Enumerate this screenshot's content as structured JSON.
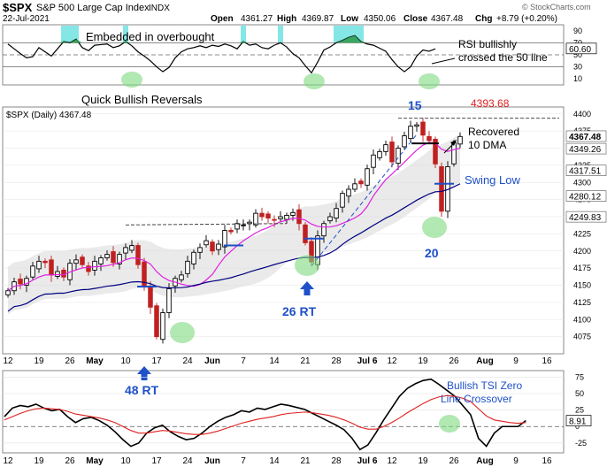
{
  "header": {
    "symbol": "$SPX",
    "name": "S&P 500 Large Cap Index",
    "exchange": "INDX",
    "date": "22-Jul-2021",
    "open_label": "Open",
    "open": "4361.27",
    "high_label": "High",
    "high": "4369.87",
    "low_label": "Low",
    "low": "4350.06",
    "close_label": "Close",
    "close": "4367.48",
    "chg_label": "Chg",
    "chg": "+8.79 (+0.20%)",
    "watermark": "© StockCharts.com"
  },
  "chart_data": [
    {
      "type": "line",
      "panel": "rsi",
      "ylim": [
        0,
        100
      ],
      "yticks": [
        10,
        30,
        50,
        70,
        90
      ],
      "levels": [
        30,
        50,
        70
      ],
      "overbought_fill": "#66e0e0",
      "last_value": "60.60",
      "series": [
        {
          "values": [
            68,
            60,
            52,
            45,
            47,
            62,
            55,
            48,
            60,
            72,
            70,
            76,
            62,
            57,
            66,
            67,
            68,
            62,
            65,
            72,
            65,
            55,
            48,
            40,
            30,
            22,
            29,
            45,
            55,
            60,
            62,
            65,
            62,
            66,
            64,
            68,
            65,
            60,
            72,
            66,
            68,
            62,
            60,
            66,
            70,
            63,
            52,
            45,
            32,
            20,
            38,
            58,
            63,
            70,
            74,
            79,
            82,
            72,
            68,
            66,
            61,
            56,
            42,
            30,
            22,
            30,
            48,
            58,
            56,
            60
          ]
        }
      ],
      "annotations": [
        "Embedded in overbought",
        "RSI bullishly\ncrossed the 50 line",
        "Quick Bullish Reversals"
      ]
    },
    {
      "type": "candlestick",
      "panel": "price",
      "title": "$SPX (Daily) 4367.48",
      "ylim": [
        4050,
        4410
      ],
      "yticks": [
        4075,
        4100,
        4125,
        4150,
        4175,
        4200,
        4225,
        4250,
        4275,
        4300,
        4325,
        4350,
        4375,
        4400
      ],
      "right_labels": [
        "4367.48",
        "4349.26",
        "4317.51",
        "4280.12",
        "4249.83"
      ],
      "x_ticks": [
        "12",
        "19",
        "26",
        "May",
        "10",
        "17",
        "24",
        "Jun",
        "7",
        "14",
        "21",
        "28",
        "Jul 6",
        "12",
        "19",
        "26",
        "Aug",
        "9",
        "16"
      ],
      "x_tick_index": [
        0,
        5,
        10,
        14,
        19,
        24,
        29,
        33,
        38,
        43,
        48,
        53,
        58,
        62,
        67,
        72,
        77,
        82,
        87
      ],
      "close": [
        4142,
        4155,
        4152,
        4160,
        4178,
        4185,
        4183,
        4165,
        4170,
        4162,
        4182,
        4187,
        4180,
        4170,
        4185,
        4190,
        4195,
        4183,
        4195,
        4205,
        4208,
        4180,
        4150,
        4118,
        4075,
        4110,
        4145,
        4160,
        4165,
        4185,
        4198,
        4205,
        4215,
        4200,
        4210,
        4230,
        4228,
        4240,
        4238,
        4242,
        4255,
        4250,
        4248,
        4245,
        4250,
        4252,
        4256,
        4240,
        4212,
        4184,
        4222,
        4240,
        4250,
        4262,
        4284,
        4290,
        4298,
        4298,
        4320,
        4340,
        4345,
        4355,
        4330,
        4350,
        4368,
        4382,
        4384,
        4369,
        4361,
        4327,
        4258,
        4323,
        4358,
        4367
      ],
      "ma_short": {
        "name": "10 DMA",
        "color": "#e020e0",
        "last": "4349.26"
      },
      "ma_long": {
        "name": "50 DMA",
        "color": "#000080",
        "last": "4249.83"
      },
      "resistance_level": "4393.68",
      "annotations": [
        "Recovered\n10 DMA",
        "Swing Low",
        "15",
        "20",
        "26 RT",
        "48 RT"
      ]
    },
    {
      "type": "line",
      "panel": "tsi",
      "ylim": [
        -40,
        85
      ],
      "yticks": [
        -25,
        0,
        25,
        50,
        75
      ],
      "last_value": "8.91",
      "series": [
        {
          "name": "TSI",
          "color": "#000000",
          "values": [
            15,
            28,
            32,
            30,
            34,
            28,
            24,
            26,
            15,
            6,
            12,
            14,
            9,
            2,
            -8,
            -20,
            -30,
            -25,
            -10,
            -2,
            2,
            -8,
            -15,
            -20,
            -18,
            -10,
            0,
            8,
            14,
            18,
            24,
            22,
            28,
            26,
            30,
            34,
            32,
            29,
            26,
            20,
            14,
            8,
            2,
            -5,
            -18,
            -35,
            -28,
            -10,
            10,
            28,
            46,
            58,
            65,
            70,
            72,
            64,
            55,
            46,
            32,
            18,
            -18,
            -30,
            -10,
            0,
            0,
            0,
            9
          ]
        },
        {
          "name": "Signal",
          "color": "#e02020",
          "values": [
            10,
            15,
            20,
            24,
            27,
            28,
            27,
            26,
            23,
            19,
            17,
            15,
            13,
            10,
            6,
            0,
            -6,
            -10,
            -10,
            -8,
            -6,
            -7,
            -9,
            -11,
            -12,
            -12,
            -10,
            -7,
            -3,
            1,
            5,
            8,
            11,
            13,
            15,
            18,
            20,
            21,
            22,
            21,
            19,
            17,
            14,
            10,
            5,
            -1,
            -4,
            -4,
            0,
            6,
            13,
            21,
            28,
            35,
            41,
            45,
            47,
            46,
            43,
            38,
            27,
            16,
            10,
            8,
            6,
            5,
            6
          ]
        }
      ],
      "annotations": [
        "Bullish TSI Zero\nLine Crossover"
      ]
    }
  ]
}
